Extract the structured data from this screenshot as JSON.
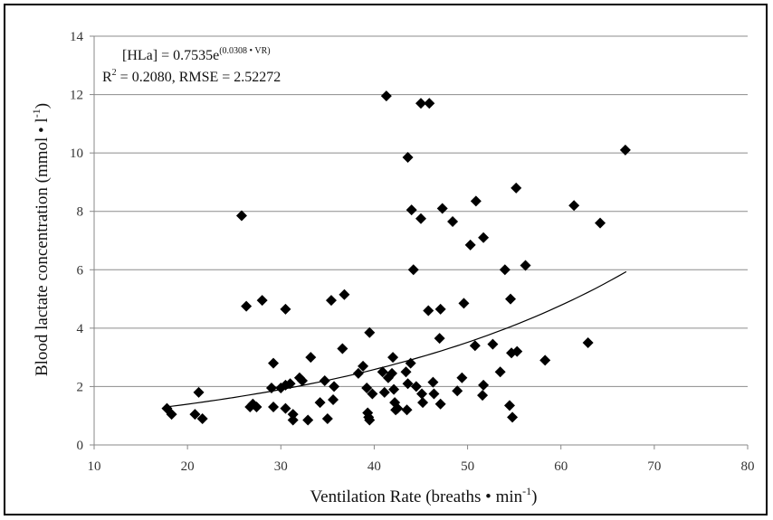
{
  "chart_data": {
    "type": "scatter",
    "title": "",
    "xlabel": {
      "main": "Ventilation Rate (breaths • min",
      "sup": "-1",
      "close": ")"
    },
    "ylabel": {
      "main": "Blood lactate concentration (mmol • l",
      "sup": "-1",
      "close": ")"
    },
    "xlim": [
      10,
      80
    ],
    "ylim": [
      0,
      14
    ],
    "xticks": [
      "10",
      "20",
      "30",
      "40",
      "50",
      "60",
      "70",
      "80"
    ],
    "yticks": [
      "0",
      "2",
      "4",
      "6",
      "8",
      "10",
      "12",
      "14"
    ],
    "grid": "horizontal",
    "marker": "diamond",
    "marker_color": "#000000",
    "annotation": {
      "line1_main": "[HLa] = 0.7535e",
      "line1_sup": "(0.0308 • VR)",
      "line2_main": "R",
      "line2_sup": "2",
      "line2_rest": " = 0.2080, RMSE = 2.52272"
    },
    "trendline": {
      "type": "exponential",
      "a": 0.7535,
      "b": 0.0308,
      "x_range": [
        17.5,
        67
      ]
    },
    "points": [
      [
        17.8,
        1.25
      ],
      [
        18.3,
        1.05
      ],
      [
        20.8,
        1.05
      ],
      [
        21.2,
        1.8
      ],
      [
        21.6,
        0.9
      ],
      [
        25.8,
        7.85
      ],
      [
        26.3,
        4.75
      ],
      [
        26.7,
        1.3
      ],
      [
        27,
        1.4
      ],
      [
        27.4,
        1.3
      ],
      [
        28,
        4.95
      ],
      [
        29,
        1.95
      ],
      [
        29.2,
        2.8
      ],
      [
        29.2,
        1.3
      ],
      [
        30,
        1.95
      ],
      [
        30.5,
        2.05
      ],
      [
        30.5,
        4.65
      ],
      [
        30.5,
        1.25
      ],
      [
        31,
        2.1
      ],
      [
        31.3,
        1.05
      ],
      [
        31.3,
        0.85
      ],
      [
        32,
        2.3
      ],
      [
        32.3,
        2.2
      ],
      [
        32.9,
        0.85
      ],
      [
        33.2,
        3.0
      ],
      [
        34.2,
        1.45
      ],
      [
        34.7,
        2.2
      ],
      [
        35,
        0.9
      ],
      [
        35.4,
        4.95
      ],
      [
        35.6,
        1.55
      ],
      [
        35.7,
        2.0
      ],
      [
        36.6,
        3.3
      ],
      [
        36.8,
        5.15
      ],
      [
        38.3,
        2.45
      ],
      [
        38.8,
        2.7
      ],
      [
        39.2,
        1.95
      ],
      [
        39.3,
        1.1
      ],
      [
        39.4,
        0.95
      ],
      [
        39.5,
        0.85
      ],
      [
        39.5,
        3.85
      ],
      [
        39.8,
        1.75
      ],
      [
        40.9,
        2.5
      ],
      [
        41.1,
        1.8
      ],
      [
        41.3,
        11.95
      ],
      [
        41.5,
        2.3
      ],
      [
        41.9,
        2.45
      ],
      [
        42,
        3.0
      ],
      [
        42.1,
        1.9
      ],
      [
        42.2,
        1.45
      ],
      [
        42.3,
        1.2
      ],
      [
        42.5,
        1.25
      ],
      [
        43.4,
        2.5
      ],
      [
        43.5,
        1.2
      ],
      [
        43.6,
        9.85
      ],
      [
        43.6,
        2.1
      ],
      [
        43.9,
        2.8
      ],
      [
        44,
        8.05
      ],
      [
        44.2,
        6.0
      ],
      [
        44.5,
        2.0
      ],
      [
        45,
        7.75
      ],
      [
        45,
        11.7
      ],
      [
        45.1,
        1.75
      ],
      [
        45.2,
        1.45
      ],
      [
        45.8,
        4.6
      ],
      [
        45.9,
        11.7
      ],
      [
        46.3,
        2.15
      ],
      [
        46.4,
        1.75
      ],
      [
        47,
        3.65
      ],
      [
        47.1,
        1.4
      ],
      [
        47.1,
        4.65
      ],
      [
        47.3,
        8.1
      ],
      [
        48.4,
        7.65
      ],
      [
        48.9,
        1.85
      ],
      [
        49.4,
        2.3
      ],
      [
        49.6,
        4.85
      ],
      [
        50.3,
        6.85
      ],
      [
        50.8,
        3.4
      ],
      [
        50.9,
        8.35
      ],
      [
        51.6,
        1.7
      ],
      [
        51.7,
        7.1
      ],
      [
        51.7,
        2.05
      ],
      [
        52.7,
        3.45
      ],
      [
        53.5,
        2.5
      ],
      [
        54,
        6.0
      ],
      [
        54.5,
        1.35
      ],
      [
        54.6,
        5.0
      ],
      [
        54.7,
        3.15
      ],
      [
        54.8,
        0.95
      ],
      [
        55.2,
        8.8
      ],
      [
        55.3,
        3.2
      ],
      [
        56.2,
        6.15
      ],
      [
        58.3,
        2.9
      ],
      [
        61.4,
        8.2
      ],
      [
        62.9,
        3.5
      ],
      [
        64.2,
        7.6
      ],
      [
        66.9,
        10.1
      ]
    ]
  }
}
